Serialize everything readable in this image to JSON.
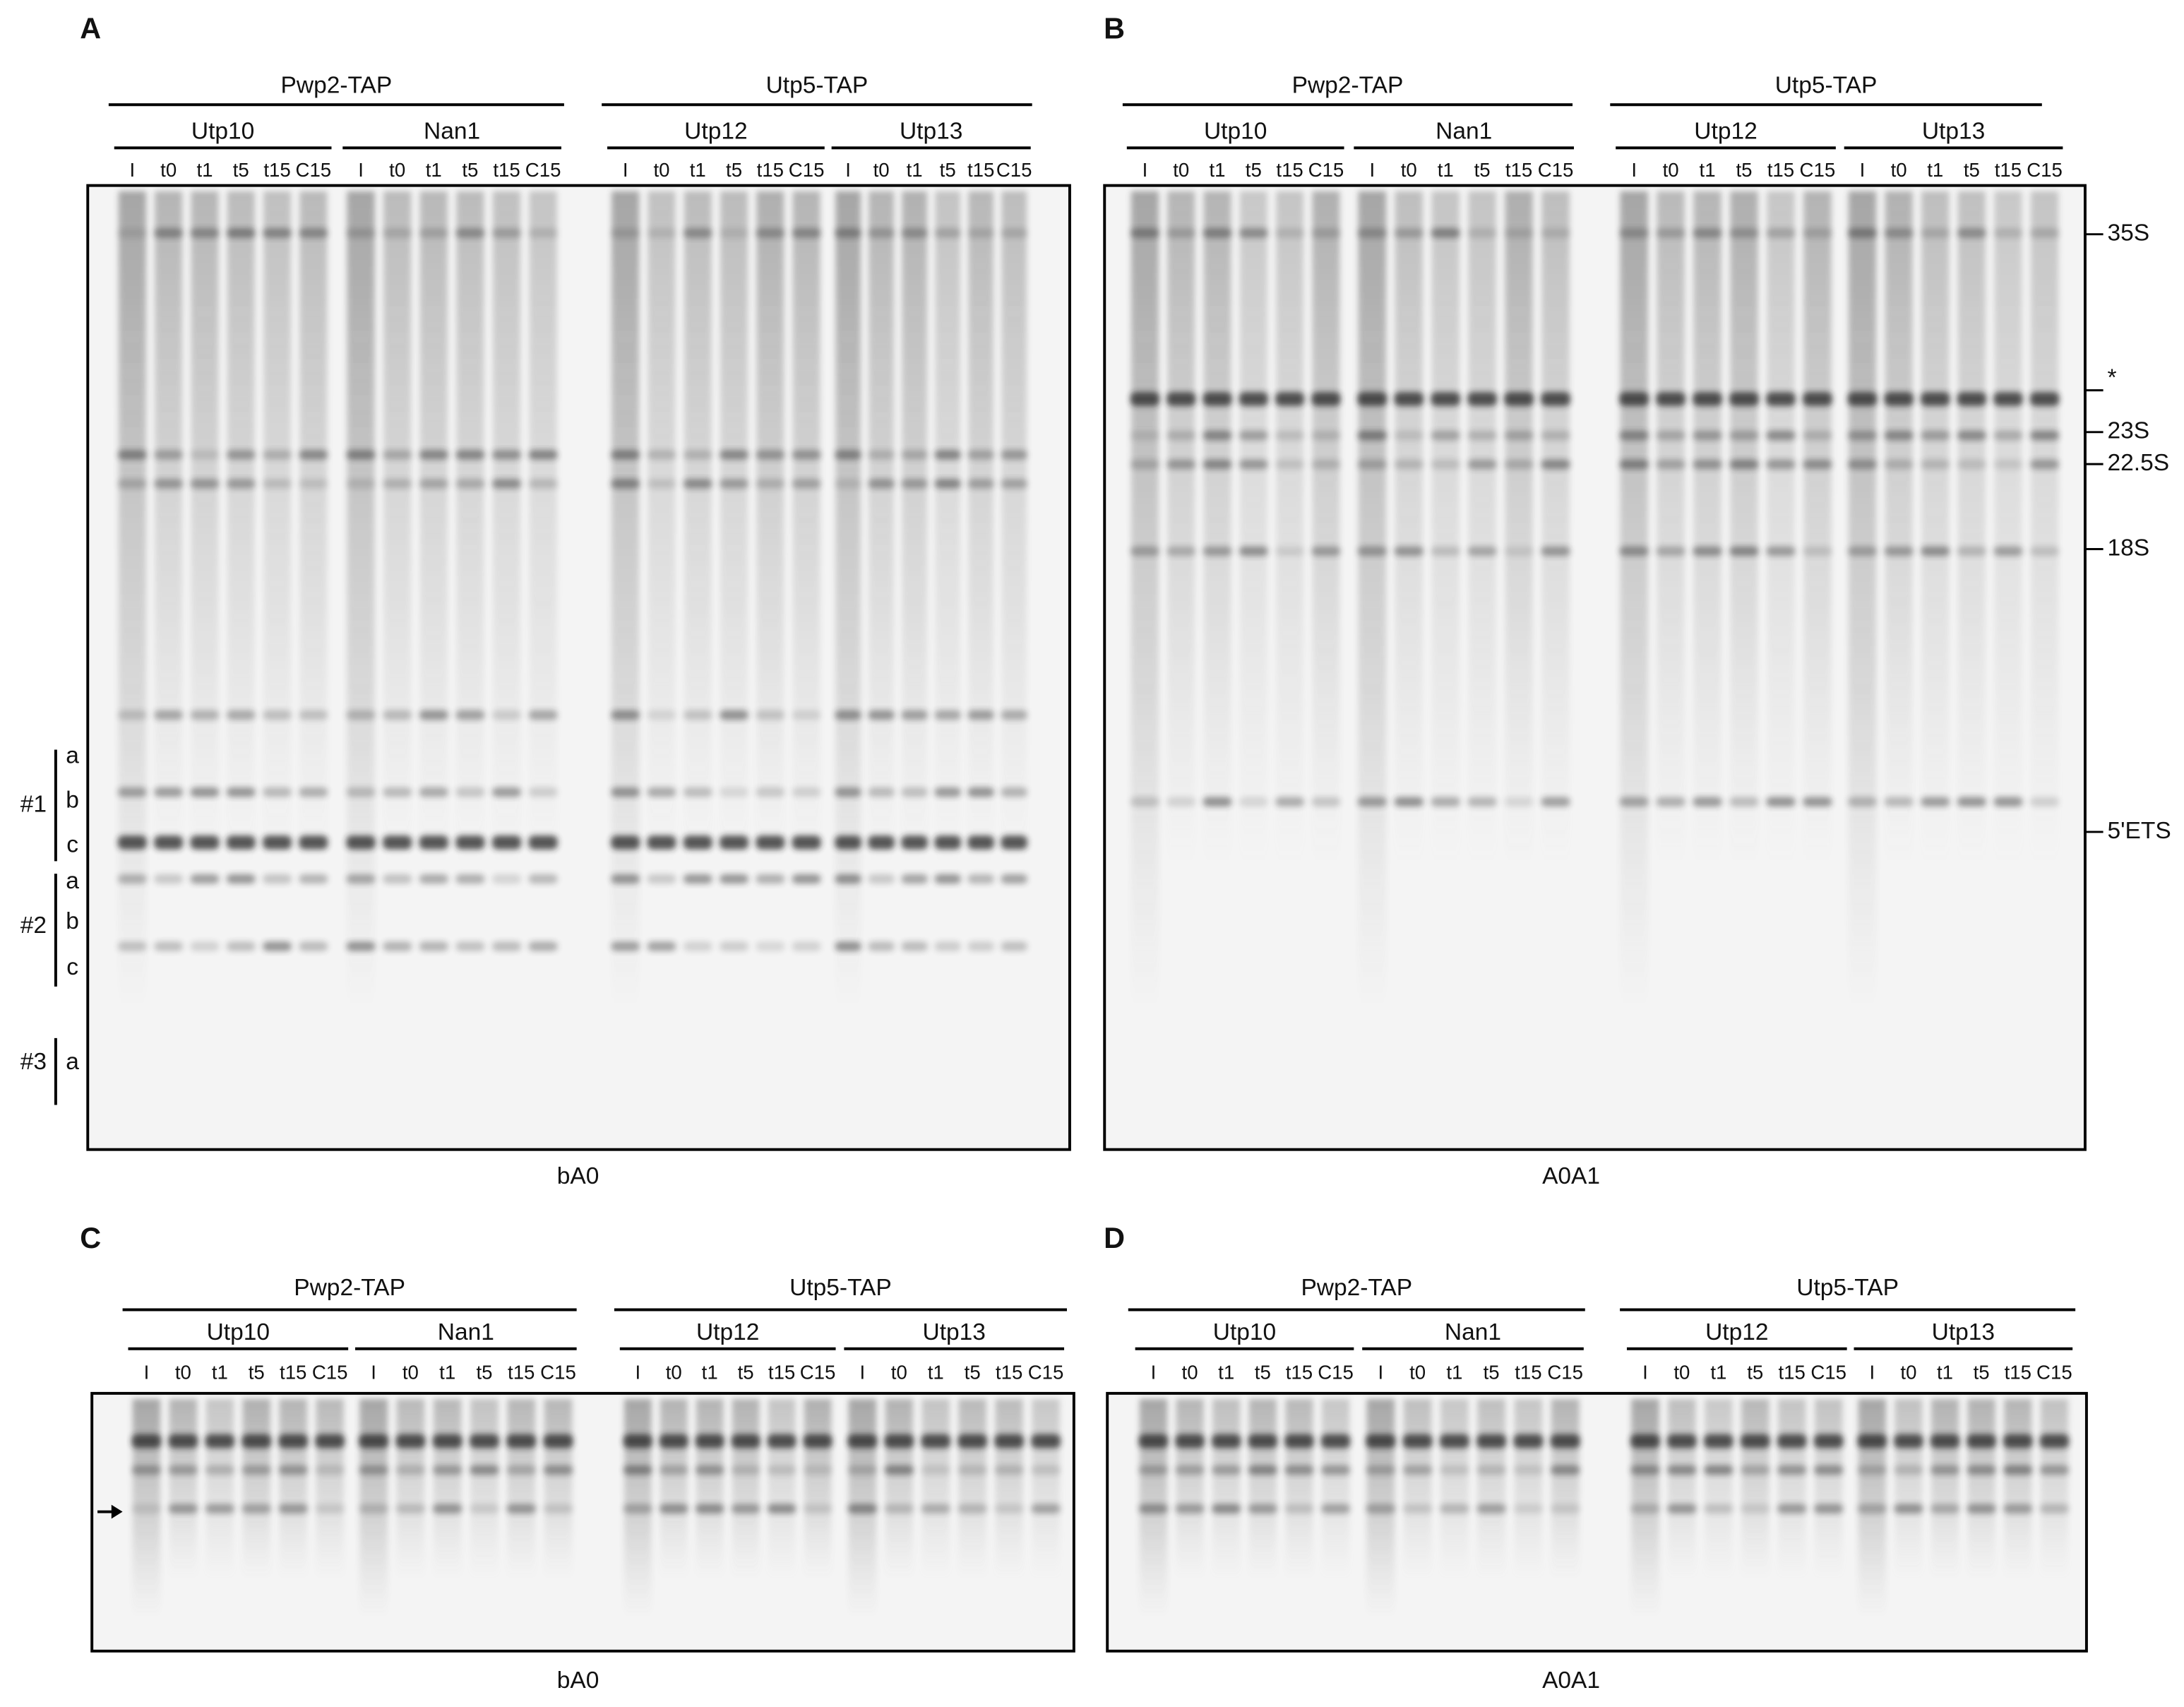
{
  "panels": [
    {
      "letter": "A",
      "caption": "bA0",
      "groups": [
        {
          "label": "Pwp2-TAP",
          "subgroups": [
            {
              "label": "Utp10",
              "lanes": [
                "I",
                "t0",
                "t1",
                "t5",
                "t15",
                "C15"
              ]
            },
            {
              "label": "Nan1",
              "lanes": [
                "I",
                "t0",
                "t1",
                "t5",
                "t15",
                "C15"
              ]
            }
          ]
        },
        {
          "label": "Utp5-TAP",
          "subgroups": [
            {
              "label": "Utp12",
              "lanes": [
                "I",
                "t0",
                "t1",
                "t5",
                "t15",
                "C15"
              ]
            },
            {
              "label": "Utp13",
              "lanes": [
                "I",
                "t0",
                "t1",
                "t5",
                "t15",
                "C15"
              ]
            }
          ]
        }
      ],
      "band_labels": [
        {
          "label": "#1",
          "items": [
            "a",
            "b",
            "c"
          ]
        },
        {
          "label": "#2",
          "items": [
            "a",
            "b",
            "c"
          ]
        },
        {
          "label": "#3",
          "items": [
            "a"
          ]
        }
      ]
    },
    {
      "letter": "B",
      "caption": "A0A1",
      "groups": [
        {
          "label": "Pwp2-TAP",
          "subgroups": [
            {
              "label": "Utp10",
              "lanes": [
                "I",
                "t0",
                "t1",
                "t5",
                "t15",
                "C15"
              ]
            },
            {
              "label": "Nan1",
              "lanes": [
                "I",
                "t0",
                "t1",
                "t5",
                "t15",
                "C15"
              ]
            }
          ]
        },
        {
          "label": "Utp5-TAP",
          "subgroups": [
            {
              "label": "Utp12",
              "lanes": [
                "I",
                "t0",
                "t1",
                "t5",
                "t15",
                "C15"
              ]
            },
            {
              "label": "Utp13",
              "lanes": [
                "I",
                "t0",
                "t1",
                "t5",
                "t15",
                "C15"
              ]
            }
          ]
        }
      ],
      "markers": [
        "35S",
        "*",
        "23S",
        "22.5S",
        "18S",
        "5'ETS"
      ]
    },
    {
      "letter": "C",
      "caption": "bA0",
      "groups": [
        {
          "label": "Pwp2-TAP",
          "subgroups": [
            {
              "label": "Utp10",
              "lanes": [
                "I",
                "t0",
                "t1",
                "t5",
                "t15",
                "C15"
              ]
            },
            {
              "label": "Nan1",
              "lanes": [
                "I",
                "t0",
                "t1",
                "t5",
                "t15",
                "C15"
              ]
            }
          ]
        },
        {
          "label": "Utp5-TAP",
          "subgroups": [
            {
              "label": "Utp12",
              "lanes": [
                "I",
                "t0",
                "t1",
                "t5",
                "t15",
                "C15"
              ]
            },
            {
              "label": "Utp13",
              "lanes": [
                "I",
                "t0",
                "t1",
                "t5",
                "t15",
                "C15"
              ]
            }
          ]
        }
      ]
    },
    {
      "letter": "D",
      "caption": "A0A1",
      "groups": [
        {
          "label": "Pwp2-TAP",
          "subgroups": [
            {
              "label": "Utp10",
              "lanes": [
                "I",
                "t0",
                "t1",
                "t5",
                "t15",
                "C15"
              ]
            },
            {
              "label": "Nan1",
              "lanes": [
                "I",
                "t0",
                "t1",
                "t5",
                "t15",
                "C15"
              ]
            }
          ]
        },
        {
          "label": "Utp5-TAP",
          "subgroups": [
            {
              "label": "Utp12",
              "lanes": [
                "I",
                "t0",
                "t1",
                "t5",
                "t15",
                "C15"
              ]
            },
            {
              "label": "Utp13",
              "lanes": [
                "I",
                "t0",
                "t1",
                "t5",
                "t15",
                "C15"
              ]
            }
          ]
        }
      ]
    }
  ]
}
